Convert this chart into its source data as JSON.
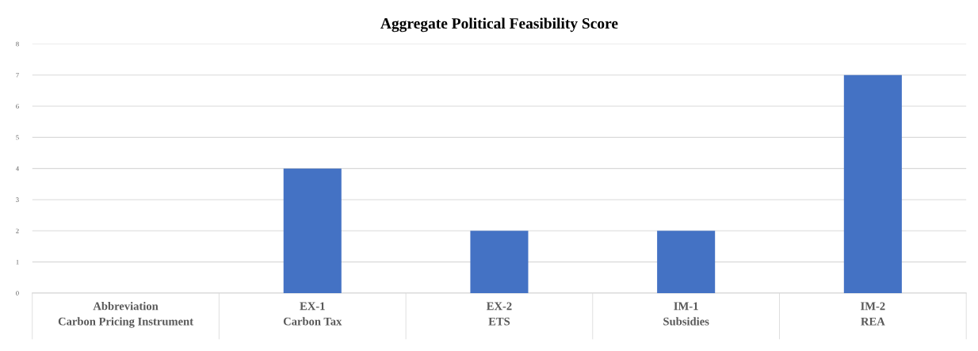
{
  "chart_data": {
    "type": "bar",
    "title": "Aggregate Political Feasibility Score",
    "categories": [
      "Abbreviation\nCarbon Pricing Instrument",
      "EX-1\nCarbon Tax",
      "EX-2\nETS",
      "IM-1\nSubsidies",
      "IM-2\nREA"
    ],
    "values": [
      null,
      4,
      2,
      2,
      7
    ],
    "color": "#4472c4",
    "ylim": [
      0,
      8
    ],
    "yticks": [
      0,
      1,
      2,
      3,
      4,
      5,
      6,
      7,
      8
    ],
    "grid": "y"
  }
}
